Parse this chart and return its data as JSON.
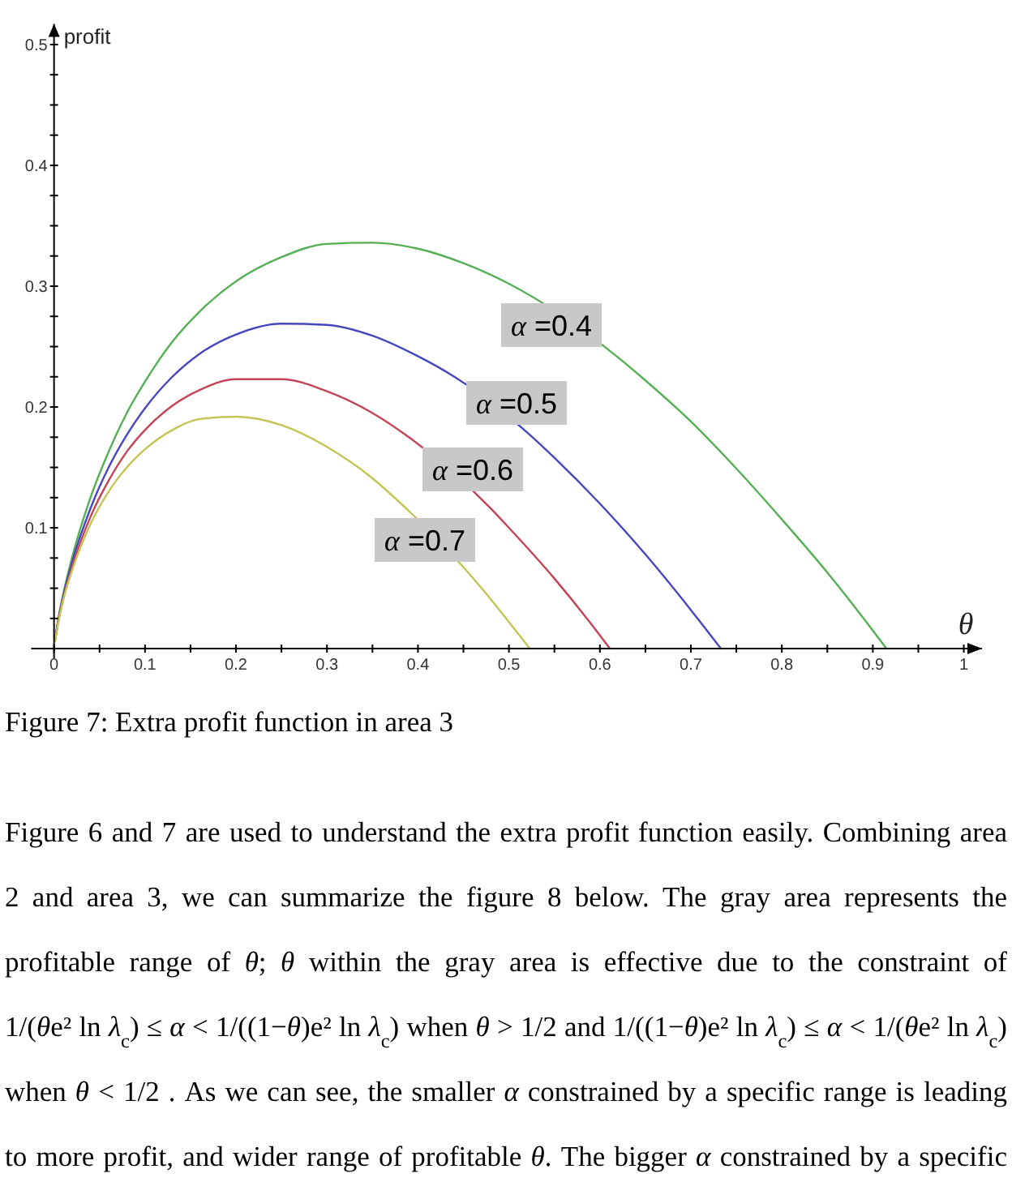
{
  "chart_data": {
    "type": "line",
    "xlabel": "θ",
    "ylabel": "profit",
    "xlim": [
      -0.025,
      1.02
    ],
    "ylim": [
      -0.008,
      0.517
    ],
    "xticks": [
      {
        "value": 0,
        "label": "0"
      },
      {
        "value": 0.05,
        "label": null
      },
      0.1,
      {
        "value": 0.15,
        "label": null
      },
      0.2,
      {
        "value": 0.25,
        "label": null
      },
      0.3,
      {
        "value": 0.35,
        "label": null
      },
      0.4,
      {
        "value": 0.45,
        "label": null
      },
      0.5,
      {
        "value": 0.55,
        "label": null
      },
      0.6,
      {
        "value": 0.65,
        "label": null
      },
      0.7,
      {
        "value": 0.75,
        "label": null
      },
      0.8,
      {
        "value": 0.85,
        "label": null
      },
      0.9,
      {
        "value": 0.95,
        "label": null
      },
      1
    ],
    "yticks": [
      {
        "value": 0.025,
        "label": null
      },
      {
        "value": 0.05,
        "label": null
      },
      {
        "value": 0.075,
        "label": null
      },
      0.1,
      {
        "value": 0.125,
        "label": null
      },
      {
        "value": 0.15,
        "label": null
      },
      {
        "value": 0.175,
        "label": null
      },
      0.2,
      {
        "value": 0.225,
        "label": null
      },
      {
        "value": 0.25,
        "label": null
      },
      {
        "value": 0.275,
        "label": null
      },
      0.3,
      {
        "value": 0.325,
        "label": null
      },
      {
        "value": 0.35,
        "label": null
      },
      {
        "value": 0.375,
        "label": null
      },
      0.4,
      {
        "value": 0.425,
        "label": null
      },
      {
        "value": 0.45,
        "label": null
      },
      {
        "value": 0.475,
        "label": null
      },
      0.5
    ],
    "series": [
      {
        "name": "α =0.4",
        "color": "#55b055",
        "x": [
          0.001,
          0.005,
          0.01,
          0.02,
          0.04,
          0.06,
          0.08,
          0.1,
          0.13,
          0.16,
          0.2,
          0.25,
          0.3,
          0.35,
          0.4,
          0.45,
          0.5,
          0.62,
          0.65,
          0.7,
          0.75,
          0.8,
          0.85,
          0.9,
          0.915
        ],
        "values": [
          0.007,
          0.026,
          0.045,
          0.076,
          0.125,
          0.163,
          0.195,
          0.221,
          0.254,
          0.279,
          0.304,
          0.324,
          0.335,
          0.336,
          0.331,
          0.319,
          0.302,
          0.241,
          0.222,
          0.188,
          0.149,
          0.107,
          0.063,
          0.015,
          0
        ]
      },
      {
        "name": "α =0.5",
        "color": "#4646bf",
        "x": [
          0.001,
          0.005,
          0.01,
          0.02,
          0.04,
          0.06,
          0.08,
          0.1,
          0.13,
          0.16,
          0.2,
          0.25,
          0.3,
          0.35,
          0.4,
          0.44,
          0.52,
          0.55,
          0.6,
          0.65,
          0.7,
          0.733
        ],
        "values": [
          0.007,
          0.025,
          0.043,
          0.072,
          0.116,
          0.15,
          0.177,
          0.199,
          0.225,
          0.244,
          0.26,
          0.269,
          0.268,
          0.259,
          0.242,
          0.225,
          0.179,
          0.158,
          0.12,
          0.078,
          0.032,
          0
        ]
      },
      {
        "name": "α =0.6",
        "color": "#c24456",
        "x": [
          0.001,
          0.005,
          0.01,
          0.02,
          0.04,
          0.06,
          0.08,
          0.1,
          0.13,
          0.16,
          0.2,
          0.25,
          0.3,
          0.35,
          0.39,
          0.48,
          0.5,
          0.55,
          0.6,
          0.611
        ],
        "values": [
          0.006,
          0.024,
          0.041,
          0.068,
          0.109,
          0.139,
          0.163,
          0.181,
          0.201,
          0.214,
          0.223,
          0.223,
          0.213,
          0.195,
          0.175,
          0.116,
          0.1,
          0.058,
          0.011,
          0
        ]
      },
      {
        "name": "α =0.7",
        "color": "#c4c455",
        "x": [
          0.001,
          0.005,
          0.01,
          0.02,
          0.04,
          0.06,
          0.08,
          0.1,
          0.13,
          0.16,
          0.2,
          0.25,
          0.3,
          0.35,
          0.38,
          0.47,
          0.5,
          0.523
        ],
        "values": [
          0.006,
          0.023,
          0.04,
          0.065,
          0.103,
          0.13,
          0.15,
          0.165,
          0.181,
          0.19,
          0.192,
          0.185,
          0.167,
          0.141,
          0.121,
          0.05,
          0.022,
          0
        ]
      }
    ],
    "annotations": [
      "Figure 7: Extra profit function in area 3",
      "Figure 6 and 7 are used to understand the extra profit function easily. Combining area",
      "2 and area 3, we can summarize the figure 8 below. The gray area represents the",
      "profitable range of θ; θ within the gray area is effective due to the constraint of",
      "1/(θe² ln λ$_{c}$) ≤ α < 1/((1−θ)e² ln λ$_{c}$) when θ > 1/2 and 1/((1−θ)e² ln λ$_{c}$) ≤ α < 1/(θe² ln λ$_{c}$)",
      "when θ < 1/2 . As we can see, the smaller α constrained by a specific range is leading",
      "to more profit, and wider range of profitable θ. The bigger α constrained by a specific"
    ]
  }
}
